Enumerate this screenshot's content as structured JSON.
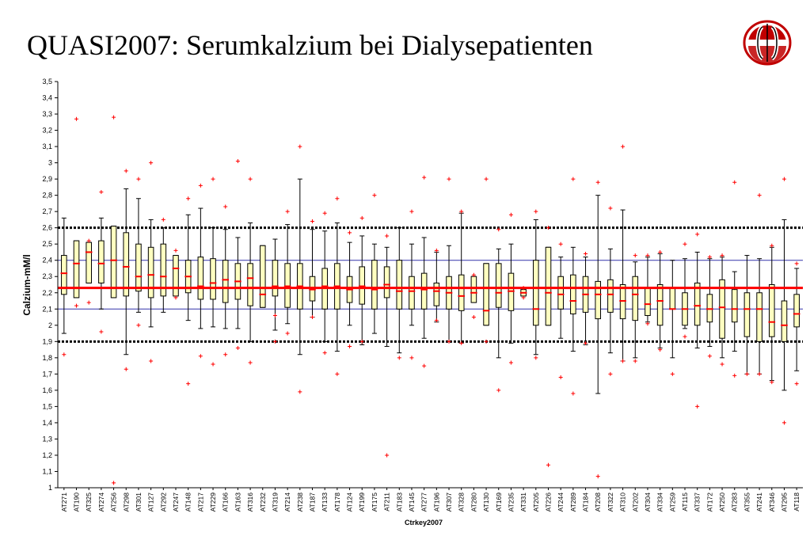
{
  "page": {
    "title": "QUASI2007: Serumkalzium bei Dialysepatienten"
  },
  "chart_data": {
    "type": "box",
    "xlabel": "Ctrkey2007",
    "ylabel": "Calzium-mM/l",
    "ylim": [
      1.0,
      3.5
    ],
    "ytick_labels": [
      "1",
      "1,1",
      "1,2",
      "1,3",
      "1,4",
      "1,5",
      "1,6",
      "1,7",
      "1,8",
      "1,9",
      "2",
      "2,1",
      "2,2",
      "2,3",
      "2,4",
      "2,5",
      "2,6",
      "2,7",
      "2,8",
      "2,9",
      "3",
      "3,1",
      "3,2",
      "3,3",
      "3,4",
      "3,5"
    ],
    "reference_lines": {
      "center": {
        "value": 2.23,
        "color": "#ff0000",
        "style": "solid-thick"
      },
      "inner": {
        "values": [
          2.1,
          2.4
        ],
        "color": "#3333aa",
        "style": "thin"
      },
      "limits": {
        "values": [
          1.9,
          2.6
        ],
        "color": "#000000",
        "style": "dotted-thick"
      }
    },
    "colors": {
      "box_fill": "#ffffc0",
      "box_stroke": "#000000",
      "whisker": "#000000",
      "median": "#ff0000",
      "outlier": "#ff0000"
    },
    "labs": [
      {
        "id": "AT271",
        "q1": 2.19,
        "q3": 2.43,
        "median": 2.32,
        "lo": 1.95,
        "hi": 2.66,
        "outliers": [
          1.82
        ]
      },
      {
        "id": "AT190",
        "q1": 2.17,
        "q3": 2.52,
        "median": 2.38,
        "lo": 2.17,
        "hi": 2.52,
        "outliers": [
          3.27,
          2.12
        ]
      },
      {
        "id": "AT325",
        "q1": 2.26,
        "q3": 2.51,
        "median": 2.45,
        "lo": 2.26,
        "hi": 2.51,
        "outliers": [
          2.14,
          2.52
        ]
      },
      {
        "id": "AT274",
        "q1": 2.26,
        "q3": 2.52,
        "median": 2.38,
        "lo": 2.1,
        "hi": 2.66,
        "outliers": [
          2.82,
          1.96
        ]
      },
      {
        "id": "AT256",
        "q1": 2.17,
        "q3": 2.61,
        "median": 2.4,
        "lo": 2.17,
        "hi": 2.61,
        "outliers": [
          3.28,
          1.03
        ]
      },
      {
        "id": "AT298",
        "q1": 2.18,
        "q3": 2.57,
        "median": 2.36,
        "lo": 1.82,
        "hi": 2.84,
        "outliers": [
          2.95,
          1.73
        ]
      },
      {
        "id": "AT301",
        "q1": 2.21,
        "q3": 2.5,
        "median": 2.3,
        "lo": 2.08,
        "hi": 2.78,
        "outliers": [
          2.9,
          2.0
        ]
      },
      {
        "id": "AT127",
        "q1": 2.17,
        "q3": 2.48,
        "median": 2.31,
        "lo": 1.99,
        "hi": 2.65,
        "outliers": [
          3.0,
          1.78
        ]
      },
      {
        "id": "AT292",
        "q1": 2.18,
        "q3": 2.5,
        "median": 2.3,
        "lo": 2.08,
        "hi": 2.6,
        "outliers": [
          2.65
        ]
      },
      {
        "id": "AT247",
        "q1": 2.18,
        "q3": 2.43,
        "median": 2.35,
        "lo": 2.18,
        "hi": 2.43,
        "outliers": [
          2.46,
          2.17
        ]
      },
      {
        "id": "AT148",
        "q1": 2.2,
        "q3": 2.4,
        "median": 2.3,
        "lo": 2.03,
        "hi": 2.68,
        "outliers": [
          2.78,
          1.64
        ]
      },
      {
        "id": "AT217",
        "q1": 2.16,
        "q3": 2.42,
        "median": 2.24,
        "lo": 1.98,
        "hi": 2.72,
        "outliers": [
          2.86,
          1.81
        ]
      },
      {
        "id": "AT229",
        "q1": 2.16,
        "q3": 2.41,
        "median": 2.26,
        "lo": 1.99,
        "hi": 2.6,
        "outliers": [
          2.9,
          1.76
        ]
      },
      {
        "id": "AT166",
        "q1": 2.14,
        "q3": 2.4,
        "median": 2.28,
        "lo": 1.98,
        "hi": 2.59,
        "outliers": [
          2.73,
          1.82
        ]
      },
      {
        "id": "AT163",
        "q1": 2.16,
        "q3": 2.38,
        "median": 2.27,
        "lo": 1.98,
        "hi": 2.54,
        "outliers": [
          3.01,
          1.86
        ]
      },
      {
        "id": "AT316",
        "q1": 2.12,
        "q3": 2.38,
        "median": 2.29,
        "lo": 1.9,
        "hi": 2.63,
        "outliers": [
          2.9,
          1.77
        ]
      },
      {
        "id": "AT232",
        "q1": 2.11,
        "q3": 2.49,
        "median": 2.19,
        "lo": 2.11,
        "hi": 2.49,
        "outliers": []
      },
      {
        "id": "AT319",
        "q1": 2.18,
        "q3": 2.4,
        "median": 2.24,
        "lo": 1.97,
        "hi": 2.53,
        "outliers": [
          1.9,
          2.06
        ]
      },
      {
        "id": "AT214",
        "q1": 2.11,
        "q3": 2.38,
        "median": 2.24,
        "lo": 2.01,
        "hi": 2.62,
        "outliers": [
          2.7,
          1.95
        ]
      },
      {
        "id": "AT238",
        "q1": 2.1,
        "q3": 2.38,
        "median": 2.24,
        "lo": 1.82,
        "hi": 2.9,
        "outliers": [
          3.1,
          1.59
        ]
      },
      {
        "id": "AT187",
        "q1": 2.15,
        "q3": 2.3,
        "median": 2.22,
        "lo": 2.05,
        "hi": 2.59,
        "outliers": [
          2.64,
          2.05
        ]
      },
      {
        "id": "AT133",
        "q1": 2.1,
        "q3": 2.35,
        "median": 2.24,
        "lo": 1.9,
        "hi": 2.58,
        "outliers": [
          2.69,
          1.83
        ]
      },
      {
        "id": "AT178",
        "q1": 2.1,
        "q3": 2.38,
        "median": 2.24,
        "lo": 1.84,
        "hi": 2.63,
        "outliers": [
          2.78,
          1.7
        ]
      },
      {
        "id": "AT124",
        "q1": 2.14,
        "q3": 2.3,
        "median": 2.22,
        "lo": 2.0,
        "hi": 2.51,
        "outliers": [
          2.57,
          1.87
        ]
      },
      {
        "id": "AT199",
        "q1": 2.13,
        "q3": 2.36,
        "median": 2.24,
        "lo": 1.88,
        "hi": 2.55,
        "outliers": [
          2.66,
          1.9
        ]
      },
      {
        "id": "AT175",
        "q1": 2.1,
        "q3": 2.4,
        "median": 2.22,
        "lo": 1.95,
        "hi": 2.5,
        "outliers": [
          2.8
        ]
      },
      {
        "id": "AT211",
        "q1": 2.17,
        "q3": 2.36,
        "median": 2.25,
        "lo": 1.87,
        "hi": 2.48,
        "outliers": [
          2.55,
          1.2
        ]
      },
      {
        "id": "AT183",
        "q1": 2.1,
        "q3": 2.4,
        "median": 2.21,
        "lo": 1.83,
        "hi": 2.6,
        "outliers": [
          1.8
        ]
      },
      {
        "id": "AT145",
        "q1": 2.1,
        "q3": 2.3,
        "median": 2.21,
        "lo": 2.0,
        "hi": 2.5,
        "outliers": [
          2.7,
          1.8
        ]
      },
      {
        "id": "AT277",
        "q1": 2.1,
        "q3": 2.32,
        "median": 2.22,
        "lo": 1.92,
        "hi": 2.54,
        "outliers": [
          2.91,
          1.75
        ]
      },
      {
        "id": "AT196",
        "q1": 2.12,
        "q3": 2.26,
        "median": 2.21,
        "lo": 2.02,
        "hi": 2.45,
        "outliers": [
          2.46,
          2.03
        ]
      },
      {
        "id": "AT307",
        "q1": 2.1,
        "q3": 2.3,
        "median": 2.2,
        "lo": 1.9,
        "hi": 2.49,
        "outliers": [
          2.9,
          1.9
        ]
      },
      {
        "id": "AT328",
        "q1": 2.09,
        "q3": 2.31,
        "median": 2.18,
        "lo": 1.89,
        "hi": 2.69,
        "outliers": [
          2.7,
          1.89
        ]
      },
      {
        "id": "AT280",
        "q1": 2.14,
        "q3": 2.3,
        "median": 2.2,
        "lo": 2.14,
        "hi": 2.3,
        "outliers": [
          2.31,
          2.05
        ]
      },
      {
        "id": "AT130",
        "q1": 2.0,
        "q3": 2.38,
        "median": 2.09,
        "lo": 2.0,
        "hi": 2.38,
        "outliers": [
          2.9,
          1.9
        ]
      },
      {
        "id": "AT169",
        "q1": 2.11,
        "q3": 2.38,
        "median": 2.2,
        "lo": 1.8,
        "hi": 2.47,
        "outliers": [
          2.59,
          1.6
        ]
      },
      {
        "id": "AT235",
        "q1": 2.09,
        "q3": 2.32,
        "median": 2.21,
        "lo": 1.89,
        "hi": 2.5,
        "outliers": [
          2.68,
          1.77
        ]
      },
      {
        "id": "AT331",
        "q1": 2.18,
        "q3": 2.22,
        "median": 2.2,
        "lo": 2.18,
        "hi": 2.22,
        "outliers": [
          2.23,
          2.17
        ]
      },
      {
        "id": "AT205",
        "q1": 2.0,
        "q3": 2.4,
        "median": 2.1,
        "lo": 1.82,
        "hi": 2.65,
        "outliers": [
          2.7,
          1.8
        ]
      },
      {
        "id": "AT226",
        "q1": 2.0,
        "q3": 2.48,
        "median": 2.2,
        "lo": 2.0,
        "hi": 2.48,
        "outliers": [
          2.6,
          1.14
        ]
      },
      {
        "id": "AT244",
        "q1": 2.1,
        "q3": 2.3,
        "median": 2.19,
        "lo": 1.92,
        "hi": 2.42,
        "outliers": [
          2.5,
          1.68
        ]
      },
      {
        "id": "AT289",
        "q1": 2.07,
        "q3": 2.31,
        "median": 2.15,
        "lo": 1.84,
        "hi": 2.48,
        "outliers": [
          2.9,
          1.58
        ]
      },
      {
        "id": "AT184",
        "q1": 2.08,
        "q3": 2.3,
        "median": 2.19,
        "lo": 1.88,
        "hi": 2.42,
        "outliers": [
          2.44,
          1.89
        ]
      },
      {
        "id": "AT208",
        "q1": 2.04,
        "q3": 2.27,
        "median": 2.19,
        "lo": 1.58,
        "hi": 2.8,
        "outliers": [
          2.88,
          1.07
        ]
      },
      {
        "id": "AT322",
        "q1": 2.08,
        "q3": 2.28,
        "median": 2.19,
        "lo": 1.83,
        "hi": 2.47,
        "outliers": [
          2.72,
          1.7
        ]
      },
      {
        "id": "AT310",
        "q1": 2.04,
        "q3": 2.25,
        "median": 2.15,
        "lo": 1.78,
        "hi": 2.71,
        "outliers": [
          3.1,
          1.78
        ]
      },
      {
        "id": "AT202",
        "q1": 2.03,
        "q3": 2.3,
        "median": 2.19,
        "lo": 1.8,
        "hi": 2.39,
        "outliers": [
          2.43,
          1.78
        ]
      },
      {
        "id": "AT304",
        "q1": 2.06,
        "q3": 2.23,
        "median": 2.13,
        "lo": 2.02,
        "hi": 2.42,
        "outliers": [
          2.43,
          2.01
        ]
      },
      {
        "id": "AT334",
        "q1": 2.0,
        "q3": 2.25,
        "median": 2.15,
        "lo": 1.86,
        "hi": 2.44,
        "outliers": [
          2.45,
          1.85
        ]
      },
      {
        "id": "AT259",
        "q1": 2.1,
        "q3": 2.23,
        "median": 2.1,
        "lo": 1.8,
        "hi": 2.4,
        "outliers": [
          1.7
        ]
      },
      {
        "id": "AT115",
        "q1": 2.0,
        "q3": 2.2,
        "median": 2.1,
        "lo": 1.98,
        "hi": 2.41,
        "outliers": [
          2.5,
          1.93
        ]
      },
      {
        "id": "AT337",
        "q1": 2.0,
        "q3": 2.26,
        "median": 2.12,
        "lo": 1.86,
        "hi": 2.45,
        "outliers": [
          2.56,
          1.5
        ]
      },
      {
        "id": "AT172",
        "q1": 2.02,
        "q3": 2.19,
        "median": 2.1,
        "lo": 1.87,
        "hi": 2.41,
        "outliers": [
          2.42,
          1.81
        ]
      },
      {
        "id": "AT250",
        "q1": 1.92,
        "q3": 2.28,
        "median": 2.11,
        "lo": 1.8,
        "hi": 2.42,
        "outliers": [
          2.43,
          1.76
        ]
      },
      {
        "id": "AT283",
        "q1": 2.02,
        "q3": 2.22,
        "median": 2.1,
        "lo": 1.84,
        "hi": 2.33,
        "outliers": [
          2.88,
          1.69
        ]
      },
      {
        "id": "AT355",
        "q1": 1.93,
        "q3": 2.2,
        "median": 2.1,
        "lo": 1.7,
        "hi": 2.43,
        "outliers": [
          1.7
        ]
      },
      {
        "id": "AT241",
        "q1": 1.9,
        "q3": 2.2,
        "median": 2.1,
        "lo": 1.7,
        "hi": 2.41,
        "outliers": [
          2.8,
          1.7
        ]
      },
      {
        "id": "AT346",
        "q1": 1.93,
        "q3": 2.25,
        "median": 2.02,
        "lo": 1.66,
        "hi": 2.48,
        "outliers": [
          2.49,
          1.65
        ]
      },
      {
        "id": "AT295",
        "q1": 1.9,
        "q3": 2.15,
        "median": 2.0,
        "lo": 1.6,
        "hi": 2.65,
        "outliers": [
          2.9,
          1.4
        ]
      },
      {
        "id": "AT118",
        "q1": 1.99,
        "q3": 2.19,
        "median": 2.07,
        "lo": 1.72,
        "hi": 2.35,
        "outliers": [
          2.38,
          1.64
        ]
      }
    ]
  }
}
